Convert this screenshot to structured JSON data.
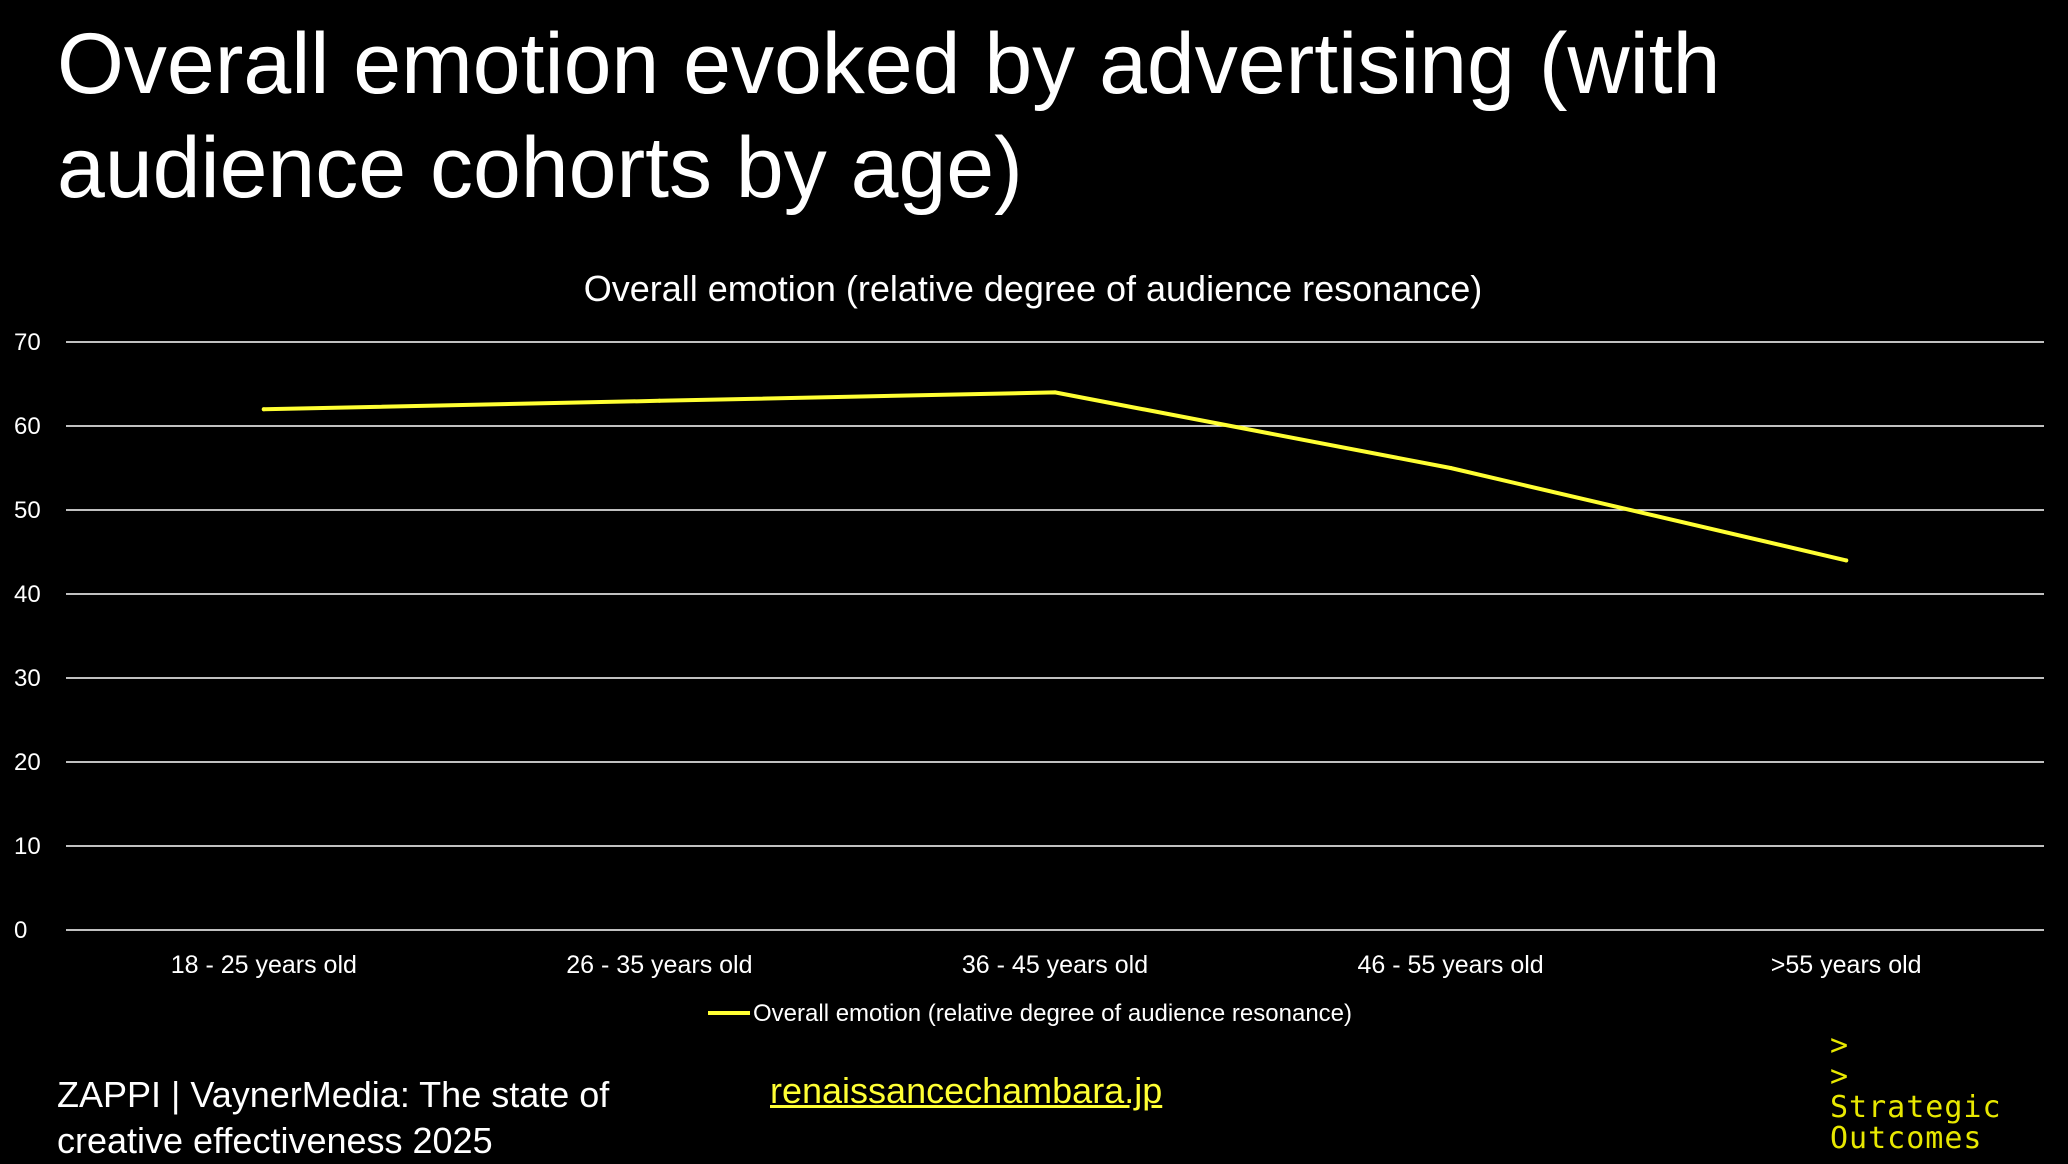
{
  "page": {
    "title_line1": "Overall emotion evoked by advertising (with",
    "title_line2": "audience cohorts by age)"
  },
  "chart_data": {
    "type": "line",
    "title": "Overall emotion (relative degree of audience resonance)",
    "categories": [
      "18 - 25 years old",
      "26 - 35 years old",
      "36 - 45 years old",
      "46 - 55 years old",
      ">55 years old"
    ],
    "series": [
      {
        "name": "Overall emotion (relative degree of audience resonance)",
        "values": [
          62,
          63,
          64,
          55,
          44
        ],
        "color": "#ffff33"
      }
    ],
    "ylim": [
      0,
      70
    ],
    "yticks": [
      0,
      10,
      20,
      30,
      40,
      50,
      60,
      70
    ],
    "grid": true,
    "legend_position": "bottom",
    "colors": {
      "background": "#000000",
      "gridline": "#ffffff",
      "text": "#ffffff"
    }
  },
  "footer": {
    "source_line1": "ZAPPI | VaynerMedia: The state of",
    "source_line2": "creative effectiveness 2025",
    "link_text": "renaissancechambara.jp",
    "logo_line1": ">",
    "logo_line2": ">",
    "logo_line3": "Strategic",
    "logo_line4": "Outcomes"
  }
}
